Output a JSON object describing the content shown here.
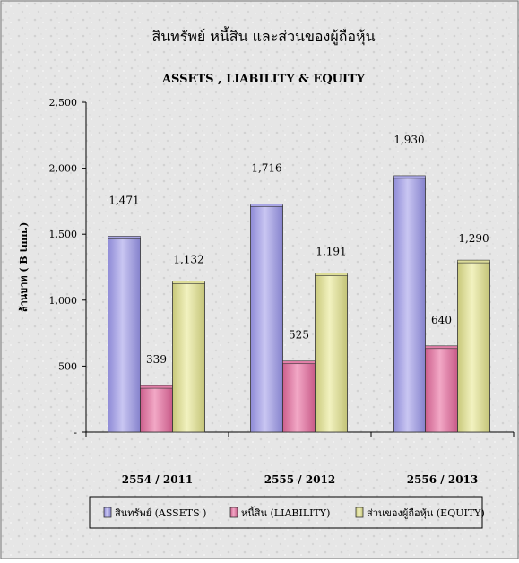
{
  "chart_data": {
    "type": "bar",
    "title": "สินทรัพย์ หนี้สิน และส่วนของผู้ถือหุ้น",
    "subtitle": "ASSETS , LIABILITY & EQUITY",
    "ylabel": "ล้านบาท ( B tmn.)",
    "xlabel": "",
    "categories": [
      "2554 / 2011",
      "2555 / 2012",
      "2556 / 2013"
    ],
    "ylim": [
      0,
      2500
    ],
    "yticks": [
      0,
      500,
      1000,
      1500,
      2000,
      2500
    ],
    "ytick_labels": [
      "-",
      "500",
      "1,000",
      "1,500",
      "2,000",
      "2,500"
    ],
    "series": [
      {
        "name": "สินทรัพย์ (ASSETS )",
        "values": [
          1471,
          1716,
          1930
        ],
        "labels": [
          "1,471",
          "1,716",
          "1,930"
        ],
        "color": "#a9a6e4"
      },
      {
        "name": "หนี้สิน (LIABILITY)",
        "values": [
          339,
          525,
          640
        ],
        "labels": [
          "339",
          "525",
          "640"
        ],
        "color": "#e27fa8"
      },
      {
        "name": "ส่วนของผู้ถือหุ้น (EQUITY)",
        "values": [
          1132,
          1191,
          1290
        ],
        "labels": [
          "1,132",
          "1,191",
          "1,290"
        ],
        "color": "#dddd99"
      }
    ],
    "grid": false,
    "legend_position": "bottom"
  }
}
